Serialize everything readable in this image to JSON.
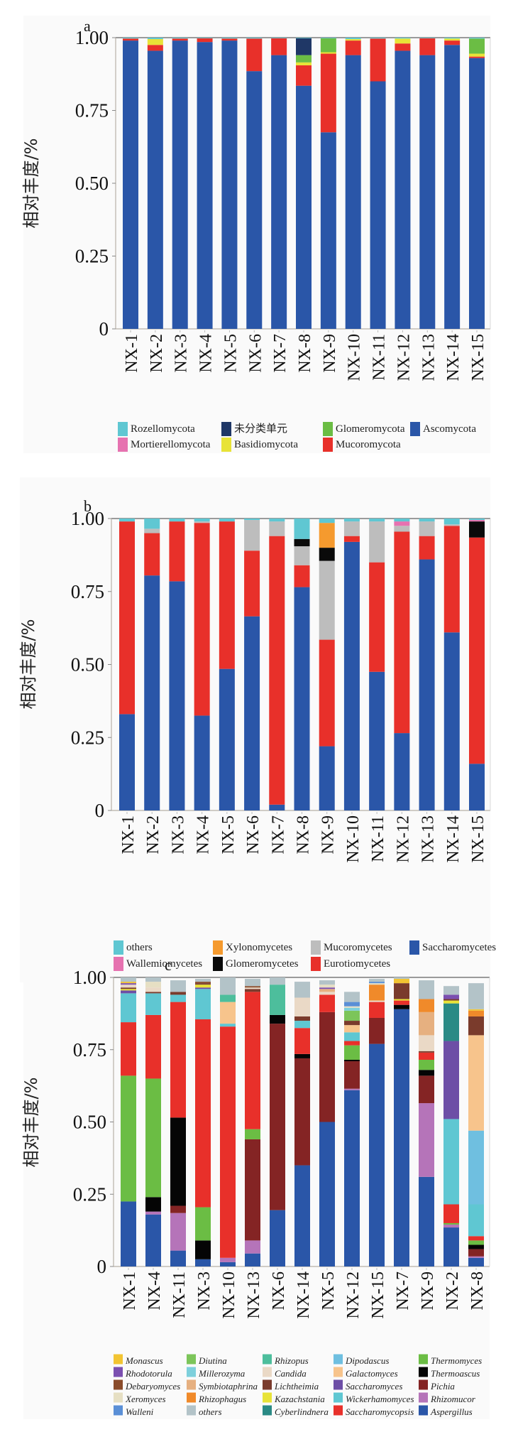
{
  "chart_data": [
    {
      "type": "bar",
      "stacked": true,
      "panel_label": "a",
      "title": "",
      "xlabel": "",
      "ylabel": "相对丰度/%",
      "ylim": [
        0,
        1
      ],
      "yticks": [
        "0",
        "0.25",
        "0.50",
        "0.75",
        "1.00"
      ],
      "ytick_values": [
        0,
        0.25,
        0.5,
        0.75,
        1.0
      ],
      "categories": [
        "NX-1",
        "NX-2",
        "NX-3",
        "NX-4",
        "NX-5",
        "NX-6",
        "NX-7",
        "NX-8",
        "NX-9",
        "NX-10",
        "NX-11",
        "NX-12",
        "NX-13",
        "NX-14",
        "NX-15"
      ],
      "legend_position": "bottom",
      "legend_columns": 4,
      "legend": [
        "Rozellomycota",
        "未分类单元",
        "Glomeromycota",
        "Ascomycota",
        "Mortierellomycota",
        "Basidiomycota",
        "Mucoromycota"
      ],
      "series": [
        {
          "name": "Ascomycota",
          "color": "#2a56a8",
          "values": [
            0.99,
            0.955,
            0.99,
            0.985,
            0.99,
            0.885,
            0.94,
            0.835,
            0.675,
            0.94,
            0.85,
            0.955,
            0.94,
            0.975,
            0.93
          ]
        },
        {
          "name": "Mucoromycota",
          "color": "#e8302a",
          "values": [
            0.007,
            0.02,
            0.007,
            0.013,
            0.007,
            0.112,
            0.058,
            0.07,
            0.27,
            0.05,
            0.147,
            0.025,
            0.058,
            0.015,
            0.005
          ]
        },
        {
          "name": "Basidiomycota",
          "color": "#e8e337",
          "values": [
            0,
            0.02,
            0,
            0,
            0,
            0,
            0,
            0.01,
            0.005,
            0.005,
            0,
            0.017,
            0,
            0.007,
            0.01
          ]
        },
        {
          "name": "Glomeromycota",
          "color": "#6bbd44",
          "values": [
            0,
            0,
            0,
            0,
            0,
            0,
            0,
            0.025,
            0.048,
            0,
            0,
            0,
            0,
            0,
            0.052
          ]
        },
        {
          "name": "Mortierellomycota",
          "color": "#e672b0",
          "values": [
            0,
            0,
            0,
            0,
            0,
            0,
            0,
            0,
            0,
            0,
            0,
            0,
            0,
            0,
            0
          ]
        },
        {
          "name": "未分类单元",
          "color": "#1f3766",
          "values": [
            0,
            0,
            0,
            0,
            0,
            0,
            0,
            0.058,
            0,
            0,
            0,
            0,
            0,
            0,
            0
          ]
        },
        {
          "name": "Rozellomycota",
          "color": "#5fc7d2",
          "values": [
            0.003,
            0.005,
            0.003,
            0.002,
            0.003,
            0.003,
            0.002,
            0.002,
            0.002,
            0.005,
            0.003,
            0.003,
            0.002,
            0.003,
            0.003
          ]
        }
      ]
    },
    {
      "type": "bar",
      "stacked": true,
      "panel_label": "b",
      "title": "",
      "xlabel": "",
      "ylabel": "相对丰度/%",
      "ylim": [
        0,
        1
      ],
      "yticks": [
        "0",
        "0.25",
        "0.50",
        "0.75",
        "1.00"
      ],
      "ytick_values": [
        0,
        0.25,
        0.5,
        0.75,
        1.0
      ],
      "categories": [
        "NX-1",
        "NX-2",
        "NX-3",
        "NX-4",
        "NX-5",
        "NX-6",
        "NX-7",
        "NX-8",
        "NX-9",
        "NX-10",
        "NX-11",
        "NX-12",
        "NX-13",
        "NX-14",
        "NX-15"
      ],
      "legend_position": "bottom",
      "legend_columns": 4,
      "legend": [
        "others",
        "Xylonomycetes",
        "Mucoromycetes",
        "Saccharomycetes",
        "Wallemiomycetes",
        "Glomeromycetes",
        "Eurotiomycetes"
      ],
      "series": [
        {
          "name": "Saccharomycetes",
          "color": "#2a56a8",
          "values": [
            0.33,
            0.805,
            0.785,
            0.325,
            0.485,
            0.665,
            0.02,
            0.765,
            0.22,
            0.92,
            0.475,
            0.265,
            0.86,
            0.61,
            0.16
          ]
        },
        {
          "name": "Eurotiomycetes",
          "color": "#e8302a",
          "values": [
            0.66,
            0.145,
            0.205,
            0.66,
            0.505,
            0.225,
            0.92,
            0.075,
            0.365,
            0.02,
            0.375,
            0.69,
            0.08,
            0.365,
            0.775
          ]
        },
        {
          "name": "Mucoromycetes",
          "color": "#bdbdbd",
          "values": [
            0,
            0.015,
            0,
            0.005,
            0,
            0.105,
            0.05,
            0.065,
            0.27,
            0.05,
            0.14,
            0.02,
            0.05,
            0.005,
            0
          ]
        },
        {
          "name": "Glomeromycetes",
          "color": "#0a0a0a",
          "values": [
            0,
            0,
            0,
            0,
            0,
            0,
            0,
            0.025,
            0.045,
            0,
            0,
            0,
            0,
            0,
            0.055
          ]
        },
        {
          "name": "Xylonomycetes",
          "color": "#f59a2e",
          "values": [
            0,
            0,
            0,
            0,
            0,
            0,
            0,
            0,
            0.085,
            0,
            0,
            0,
            0,
            0,
            0
          ]
        },
        {
          "name": "Wallemiomycetes",
          "color": "#e672b0",
          "values": [
            0,
            0,
            0,
            0,
            0,
            0,
            0,
            0,
            0,
            0,
            0,
            0.015,
            0,
            0,
            0.005
          ]
        },
        {
          "name": "others",
          "color": "#5fc7d2",
          "values": [
            0.01,
            0.035,
            0.01,
            0.01,
            0.01,
            0.005,
            0.01,
            0.07,
            0.015,
            0.01,
            0.01,
            0.01,
            0.01,
            0.02,
            0.005
          ]
        }
      ]
    },
    {
      "type": "bar",
      "stacked": true,
      "panel_label": "c",
      "title": "",
      "xlabel": "",
      "ylabel": "相对丰度/%",
      "ylim": [
        0,
        1
      ],
      "yticks": [
        "0",
        "0.25",
        "0.50",
        "0.75",
        "1.00"
      ],
      "ytick_values": [
        0,
        0.25,
        0.5,
        0.75,
        1.0
      ],
      "categories": [
        "NX-1",
        "NX-4",
        "NX-11",
        "NX-3",
        "NX-10",
        "NX-13",
        "NX-6",
        "NX-14",
        "NX-5",
        "NX-12",
        "NX-15",
        "NX-7",
        "NX-9",
        "NX-2",
        "NX-8"
      ],
      "legend_position": "bottom",
      "legend_columns": 5,
      "legend": [
        "Monascus",
        "Diutina",
        "Rhizopus",
        "Dipodascus",
        "Thermomyces",
        "Rhodotorula",
        "Millerozyma",
        "Candida",
        "Galactomyces",
        "Thermoascus",
        "Debaryomyces",
        "Symbiotaphrina",
        "Lichtheimia",
        "Saccharomyces",
        "Pichia",
        "Xeromyces",
        "Rhizophagus",
        "Kazachstania",
        "Wickerhamomyces",
        "Rhizomucor",
        "Walleni",
        "others",
        "Cyberlindnera",
        "Saccharomycopsis",
        "Aspergillus"
      ],
      "series": [
        {
          "name": "Aspergillus",
          "color": "#2a56a8",
          "values": [
            0.225,
            0.18,
            0.055,
            0.025,
            0.015,
            0.045,
            0.195,
            0.35,
            0.5,
            0.61,
            0.77,
            0.89,
            0.31,
            0.135,
            0.03
          ]
        },
        {
          "name": "Rhizomucor",
          "color": "#b574b9",
          "values": [
            0,
            0.01,
            0.13,
            0,
            0.015,
            0.045,
            0,
            0,
            0,
            0.005,
            0,
            0,
            0.255,
            0.01,
            0.005
          ]
        },
        {
          "name": "Pichia",
          "color": "#842424",
          "values": [
            0,
            0,
            0.025,
            0,
            0,
            0.35,
            0.645,
            0.37,
            0.38,
            0.095,
            0.09,
            0,
            0.095,
            0,
            0.025
          ]
        },
        {
          "name": "Thermoascus",
          "color": "#050505",
          "values": [
            0,
            0.05,
            0.305,
            0.065,
            0,
            0,
            0.03,
            0.015,
            0,
            0.005,
            0,
            0.015,
            0.02,
            0,
            0.015
          ]
        },
        {
          "name": "Thermomyces",
          "color": "#6bbd44",
          "values": [
            0.435,
            0.41,
            0,
            0.115,
            0,
            0.035,
            0,
            0,
            0,
            0.05,
            0,
            0,
            0.035,
            0.005,
            0.015
          ]
        },
        {
          "name": "Saccharomycopsis",
          "color": "#e8302a",
          "values": [
            0.185,
            0.22,
            0.4,
            0.65,
            0.8,
            0.475,
            0,
            0.09,
            0.06,
            0.015,
            0.055,
            0.015,
            0.025,
            0.065,
            0.015
          ]
        },
        {
          "name": "Wickerhamomyces",
          "color": "#5fc7d2",
          "values": [
            0.1,
            0.075,
            0.025,
            0.105,
            0.01,
            0,
            0,
            0.025,
            0,
            0.03,
            0,
            0,
            0,
            0.295,
            0.11
          ]
        },
        {
          "name": "Saccharomyces",
          "color": "#6d4ea6",
          "values": [
            0.01,
            0,
            0,
            0.005,
            0,
            0,
            0,
            0,
            0,
            0,
            0,
            0,
            0,
            0.27,
            0
          ]
        },
        {
          "name": "Dipodascus",
          "color": "#6fbfe0",
          "values": [
            0,
            0,
            0,
            0,
            0,
            0,
            0,
            0,
            0,
            0,
            0,
            0,
            0,
            0,
            0.255
          ]
        },
        {
          "name": "Galactomyces",
          "color": "#f7c48c",
          "values": [
            0,
            0,
            0,
            0,
            0.075,
            0,
            0,
            0,
            0,
            0.025,
            0,
            0,
            0,
            0,
            0.33
          ]
        },
        {
          "name": "Cyberlindnera",
          "color": "#2a8a85",
          "values": [
            0,
            0,
            0,
            0,
            0,
            0,
            0,
            0,
            0,
            0,
            0,
            0,
            0,
            0.13,
            0
          ]
        },
        {
          "name": "Kazachstania",
          "color": "#e8e337",
          "values": [
            0.005,
            0,
            0,
            0.01,
            0,
            0,
            0,
            0,
            0,
            0,
            0,
            0.005,
            0,
            0.01,
            0
          ]
        },
        {
          "name": "Lichtheimia",
          "color": "#7a3b2c",
          "values": [
            0.005,
            0.005,
            0.01,
            0.005,
            0,
            0.01,
            0,
            0.015,
            0,
            0.015,
            0,
            0.055,
            0.005,
            0.005,
            0.065
          ]
        },
        {
          "name": "Candida",
          "color": "#ead9c6",
          "values": [
            0.01,
            0.015,
            0,
            0,
            0,
            0.005,
            0,
            0.065,
            0.01,
            0,
            0.005,
            0,
            0.055,
            0,
            0
          ]
        },
        {
          "name": "Rhizopus",
          "color": "#4dbe9c",
          "values": [
            0,
            0,
            0,
            0,
            0.025,
            0,
            0.105,
            0,
            0,
            0,
            0,
            0,
            0,
            0,
            0
          ]
        },
        {
          "name": "Symbiotaphrina",
          "color": "#e6b080",
          "values": [
            0,
            0,
            0,
            0,
            0,
            0,
            0,
            0,
            0.01,
            0,
            0,
            0,
            0.08,
            0,
            0
          ]
        },
        {
          "name": "Rhizophagus",
          "color": "#f08a2a",
          "values": [
            0,
            0,
            0,
            0,
            0,
            0,
            0,
            0,
            0,
            0,
            0.055,
            0,
            0.045,
            0,
            0.02
          ]
        },
        {
          "name": "Diutina",
          "color": "#7cc55a",
          "values": [
            0,
            0,
            0,
            0,
            0,
            0,
            0,
            0,
            0,
            0.035,
            0,
            0,
            0,
            0,
            0
          ]
        },
        {
          "name": "Millerozyma",
          "color": "#7ed0dc",
          "values": [
            0,
            0,
            0,
            0,
            0,
            0,
            0,
            0,
            0,
            0.01,
            0,
            0,
            0,
            0,
            0
          ]
        },
        {
          "name": "Rhodotorula",
          "color": "#7b4fb0",
          "values": [
            0.005,
            0,
            0,
            0,
            0,
            0,
            0,
            0,
            0.005,
            0,
            0,
            0,
            0,
            0.015,
            0
          ]
        },
        {
          "name": "Debaryomyces",
          "color": "#8a4b2a",
          "values": [
            0,
            0,
            0,
            0.005,
            0,
            0.005,
            0,
            0,
            0,
            0,
            0,
            0,
            0,
            0,
            0
          ]
        },
        {
          "name": "Xeromyces",
          "color": "#e6dfc3",
          "values": [
            0,
            0.02,
            0,
            0,
            0,
            0,
            0,
            0,
            0.01,
            0.005,
            0.005,
            0,
            0,
            0,
            0
          ]
        },
        {
          "name": "Walleni",
          "color": "#5a8fd6",
          "values": [
            0,
            0,
            0,
            0,
            0,
            0,
            0,
            0,
            0,
            0.015,
            0.005,
            0,
            0,
            0,
            0
          ]
        },
        {
          "name": "Monascus",
          "color": "#f2c432",
          "values": [
            0.005,
            0,
            0,
            0,
            0,
            0,
            0,
            0,
            0,
            0,
            0,
            0.015,
            0,
            0,
            0.005
          ]
        },
        {
          "name": "others",
          "color": "#b3c3c8",
          "values": [
            0.015,
            0.015,
            0.04,
            0.01,
            0.06,
            0.025,
            0.025,
            0.055,
            0.015,
            0.035,
            0.01,
            0.005,
            0.065,
            0.03,
            0.09
          ]
        }
      ]
    }
  ]
}
